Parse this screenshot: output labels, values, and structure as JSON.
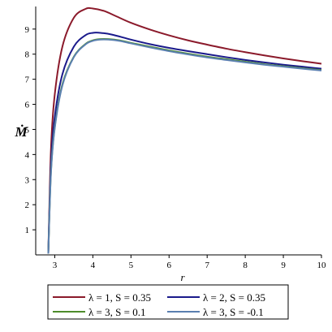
{
  "chart_data": {
    "type": "line",
    "xlabel": "r",
    "ylabel": "Ṁ",
    "xlim": [
      2.5,
      10
    ],
    "ylim": [
      0,
      9.9
    ],
    "x_ticks": [
      "3",
      "4",
      "5",
      "6",
      "7",
      "8",
      "9",
      "10"
    ],
    "y_ticks": [
      "1",
      "2",
      "3",
      "4",
      "5",
      "6",
      "7",
      "8",
      "9"
    ],
    "grid": false,
    "legend_position": "bottom",
    "series": [
      {
        "name": "λ = 1, S = 0.35",
        "color": "#8b1a2b",
        "x": [
          2.83,
          2.9,
          3.0,
          3.2,
          3.5,
          3.8,
          4.0,
          4.3,
          4.6,
          5.0,
          5.5,
          6.0,
          6.5,
          7.0,
          7.5,
          8.0,
          8.5,
          9.0,
          9.5,
          10.0
        ],
        "y": [
          0.05,
          4.2,
          6.4,
          8.3,
          9.45,
          9.8,
          9.82,
          9.72,
          9.52,
          9.25,
          8.98,
          8.75,
          8.55,
          8.38,
          8.22,
          8.08,
          7.95,
          7.83,
          7.72,
          7.62
        ]
      },
      {
        "name": "λ = 2, S = 0.35",
        "color": "#1a1a8b",
        "x": [
          2.83,
          2.9,
          3.0,
          3.2,
          3.5,
          3.8,
          4.0,
          4.2,
          4.5,
          5.0,
          5.5,
          6.0,
          6.5,
          7.0,
          7.5,
          8.0,
          8.5,
          9.0,
          9.5,
          10.0
        ],
        "y": [
          0.05,
          3.6,
          5.5,
          7.2,
          8.3,
          8.75,
          8.85,
          8.85,
          8.78,
          8.58,
          8.4,
          8.25,
          8.12,
          8.0,
          7.88,
          7.77,
          7.67,
          7.58,
          7.5,
          7.42
        ]
      },
      {
        "name": "λ = 3, S = 0.1",
        "color": "#4d8b2a",
        "x": [
          2.83,
          2.9,
          3.0,
          3.2,
          3.5,
          3.8,
          4.0,
          4.2,
          4.4,
          4.7,
          5.0,
          5.5,
          6.0,
          6.5,
          7.0,
          7.5,
          8.0,
          8.5,
          9.0,
          9.5,
          10.0
        ],
        "y": [
          0.05,
          3.3,
          5.1,
          6.8,
          7.9,
          8.4,
          8.55,
          8.6,
          8.6,
          8.55,
          8.45,
          8.3,
          8.15,
          8.02,
          7.9,
          7.8,
          7.7,
          7.6,
          7.52,
          7.44,
          7.37
        ]
      },
      {
        "name": "λ = 3, S = -0.1",
        "color": "#5a7fb0",
        "x": [
          2.83,
          2.9,
          3.0,
          3.2,
          3.5,
          3.8,
          4.0,
          4.2,
          4.4,
          4.7,
          5.0,
          5.5,
          6.0,
          6.5,
          7.0,
          7.5,
          8.0,
          8.5,
          9.0,
          9.5,
          10.0
        ],
        "y": [
          0.05,
          3.25,
          5.05,
          6.75,
          7.88,
          8.38,
          8.53,
          8.58,
          8.58,
          8.53,
          8.43,
          8.27,
          8.12,
          7.99,
          7.87,
          7.77,
          7.67,
          7.58,
          7.5,
          7.42,
          7.35
        ]
      }
    ]
  }
}
